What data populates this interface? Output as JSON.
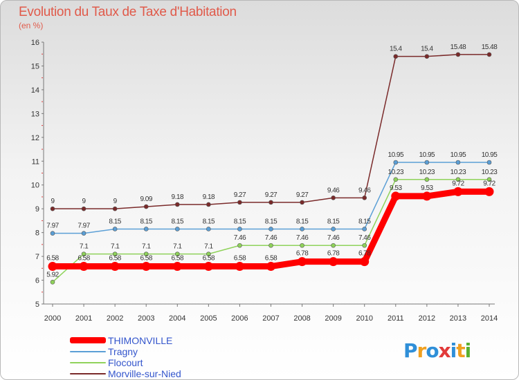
{
  "header": {
    "title": "Evolution du Taux de Taxe d'Habitation",
    "unit": "(en %)"
  },
  "logo": {
    "text": "Proxiti",
    "letters": [
      "P",
      "r",
      "o",
      "x",
      "i",
      "t",
      "i"
    ],
    "colors": [
      "#2f8fd8",
      "#f0a020",
      "#2f8fd8",
      "#e23a3a",
      "#2f8fd8",
      "#f0a020",
      "#59b02f"
    ]
  },
  "chart_data": {
    "type": "line",
    "title": "Evolution du Taux de Taxe d'Habitation",
    "ylabel": "(en %)",
    "xlabel": "",
    "x": [
      "2000",
      "2001",
      "2002",
      "2003",
      "2004",
      "2005",
      "2006",
      "2007",
      "2008",
      "2009",
      "2010",
      "2011",
      "2012",
      "2013",
      "2014"
    ],
    "ylim": [
      5,
      16
    ],
    "yticks": [
      5,
      6,
      7,
      8,
      9,
      10,
      11,
      12,
      13,
      14,
      15,
      16
    ],
    "series": [
      {
        "name": "THIMONVILLE",
        "color": "#ff0000",
        "values": [
          6.58,
          6.58,
          6.58,
          6.58,
          6.58,
          6.58,
          6.58,
          6.58,
          6.78,
          6.78,
          6.78,
          9.53,
          9.53,
          9.72,
          9.72
        ],
        "labels": [
          "6.58",
          "6.58",
          "6.58",
          "6.58",
          "6.58",
          "6.58",
          "6.58",
          "6.58",
          "6.78",
          "6.78",
          "6.78",
          "9.53",
          "9.53",
          "9.72",
          "9.72"
        ]
      },
      {
        "name": "Tragny",
        "color": "#5b9fd6",
        "values": [
          7.97,
          7.97,
          8.15,
          8.15,
          8.15,
          8.15,
          8.15,
          8.15,
          8.15,
          8.15,
          8.15,
          10.95,
          10.95,
          10.95,
          10.95
        ],
        "labels": [
          "7.97",
          "7.97",
          "8.15",
          "8.15",
          "8.15",
          "8.15",
          "8.15",
          "8.15",
          "8.15",
          "8.15",
          "8.15",
          "10.95",
          "10.95",
          "10.95",
          "10.95"
        ]
      },
      {
        "name": "Flocourt",
        "color": "#8fd25a",
        "values": [
          5.92,
          7.1,
          7.1,
          7.1,
          7.1,
          7.1,
          7.46,
          7.46,
          7.46,
          7.46,
          7.46,
          10.23,
          10.23,
          10.23,
          10.23
        ],
        "labels": [
          "5.92",
          "7.1",
          "7.1",
          "7.1",
          "7.1",
          "7.1",
          "7.46",
          "7.46",
          "7.46",
          "7.46",
          "7.46",
          "10.23",
          "10.23",
          "10.23",
          "10.23"
        ]
      },
      {
        "name": "Morville-sur-Nied",
        "color": "#7a2a2a",
        "values": [
          9,
          9,
          9,
          9.09,
          9.18,
          9.18,
          9.27,
          9.27,
          9.27,
          9.46,
          9.46,
          15.4,
          15.4,
          15.48,
          15.48
        ],
        "labels": [
          "9",
          "9",
          "9",
          "9.09",
          "9.18",
          "9.18",
          "9.27",
          "9.27",
          "9.27",
          "9.46",
          "9.46",
          "15.4",
          "15.4",
          "15.48",
          "15.48"
        ]
      }
    ],
    "legend_position": "bottom-left",
    "grid": false
  }
}
